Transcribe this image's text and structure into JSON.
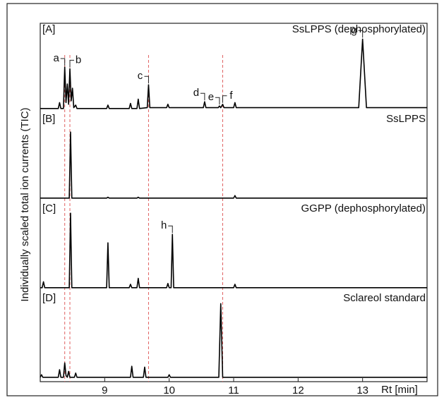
{
  "chart_data": {
    "type": "line",
    "xlabel": "Rt [min]",
    "ylabel": "Individually scaled total ion currents (TIC)",
    "xlim": [
      8,
      14
    ],
    "xticks": [
      9,
      10,
      11,
      12,
      13
    ],
    "ylim": [
      0,
      100
    ],
    "reference_lines": {
      "values": [
        8.38,
        8.46,
        9.68,
        10.83
      ],
      "color": "#e06060"
    },
    "series": [
      {
        "name": "[A]",
        "title": "SsLPPS (dephosphorylated)",
        "color": "#000000",
        "x": [
          8.0,
          8.28,
          8.3,
          8.32,
          8.36,
          8.38,
          8.4,
          8.42,
          8.44,
          8.46,
          8.48,
          8.5,
          8.52,
          8.55,
          8.57,
          9.03,
          9.05,
          9.07,
          9.38,
          9.4,
          9.42,
          9.5,
          9.52,
          9.54,
          9.66,
          9.68,
          9.7,
          9.96,
          9.98,
          10.0,
          10.53,
          10.55,
          10.57,
          10.76,
          10.78,
          10.8,
          10.83,
          10.85,
          11.0,
          11.02,
          11.04,
          12.94,
          13.0,
          13.06,
          14.0
        ],
        "values": [
          1,
          1,
          8,
          1,
          1,
          50,
          8,
          30,
          6,
          48,
          10,
          25,
          2,
          5,
          1,
          1,
          5,
          1,
          1,
          7,
          1,
          1,
          12,
          1,
          2,
          29,
          2,
          2,
          6,
          2,
          2,
          9,
          2,
          2,
          4,
          2,
          6,
          2,
          2,
          8,
          2,
          2,
          83,
          2,
          2
        ],
        "labels": [
          {
            "text": "a",
            "x": 8.38
          },
          {
            "text": "b",
            "x": 8.46
          },
          {
            "text": "c",
            "x": 9.68
          },
          {
            "text": "d",
            "x": 10.55
          },
          {
            "text": "e",
            "x": 10.78
          },
          {
            "text": "f",
            "x": 10.83
          },
          {
            "text": "g",
            "x": 13.0
          }
        ]
      },
      {
        "name": "[B]",
        "title": "SsLPPS",
        "color": "#000000",
        "x": [
          8.0,
          8.45,
          8.47,
          8.49,
          9.03,
          9.05,
          9.07,
          9.5,
          9.52,
          9.54,
          11.0,
          11.02,
          11.04,
          14.0
        ],
        "values": [
          1,
          1,
          79,
          1,
          1,
          2,
          1,
          1,
          2,
          1,
          1,
          4,
          1,
          1
        ],
        "labels": []
      },
      {
        "name": "[C]",
        "title": "GGPP (dephosphorylated)",
        "color": "#000000",
        "x": [
          8.0,
          8.03,
          8.05,
          8.07,
          8.45,
          8.47,
          8.49,
          9.03,
          9.05,
          9.07,
          9.38,
          9.4,
          9.42,
          9.5,
          9.52,
          9.54,
          9.96,
          9.98,
          10.0,
          10.03,
          10.05,
          10.07,
          11.0,
          11.02,
          11.04,
          14.0
        ],
        "values": [
          1,
          1,
          8,
          1,
          1,
          89,
          1,
          1,
          54,
          1,
          1,
          5,
          1,
          1,
          12,
          1,
          1,
          6,
          1,
          1,
          64,
          1,
          1,
          5,
          1,
          1
        ],
        "labels": [
          {
            "text": "h",
            "x": 10.05
          }
        ]
      },
      {
        "name": "[D]",
        "title": "Sclareol standard",
        "color": "#000000",
        "x": [
          8.0,
          8.02,
          8.04,
          8.28,
          8.3,
          8.32,
          8.36,
          8.38,
          8.4,
          8.42,
          8.44,
          8.46,
          8.53,
          8.55,
          8.57,
          9.4,
          9.42,
          9.44,
          9.6,
          9.62,
          9.64,
          9.98,
          10.0,
          10.02,
          10.77,
          10.8,
          10.83,
          14.0
        ],
        "values": [
          1,
          4,
          1,
          1,
          10,
          1,
          1,
          18,
          3,
          1,
          8,
          1,
          1,
          6,
          1,
          1,
          14,
          1,
          1,
          13,
          1,
          1,
          4,
          1,
          1,
          88,
          1,
          1
        ],
        "labels": []
      }
    ]
  }
}
